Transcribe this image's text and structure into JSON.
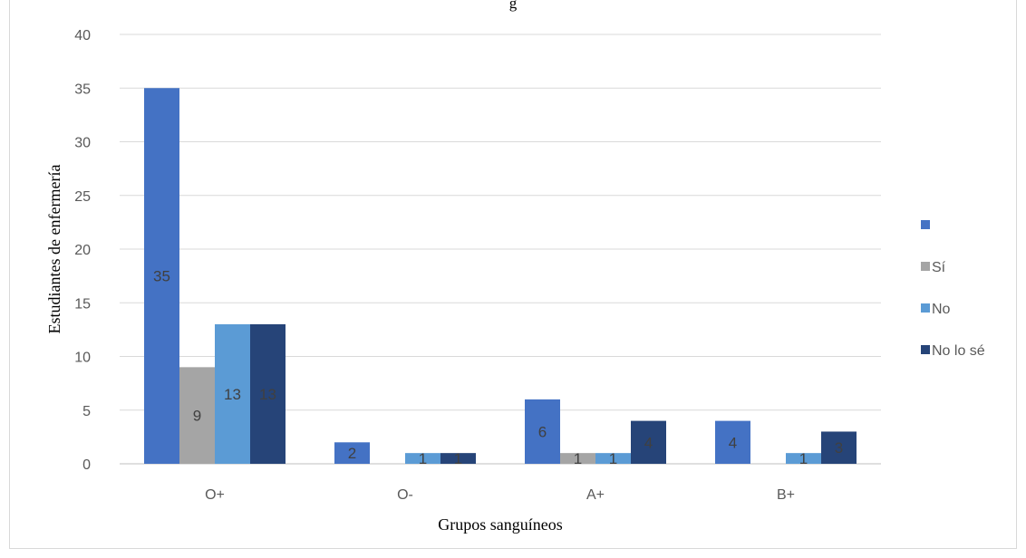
{
  "chart_data": {
    "type": "bar",
    "title": "g",
    "categories": [
      "O+",
      "O-",
      "A+",
      "B+"
    ],
    "series": [
      {
        "name": "",
        "values": [
          35,
          2,
          6,
          4
        ],
        "color": "#4472C4"
      },
      {
        "name": "Sí",
        "values": [
          9,
          0,
          1,
          0
        ],
        "color": "#A5A5A5"
      },
      {
        "name": "No",
        "values": [
          13,
          1,
          1,
          1
        ],
        "color": "#5B9BD5"
      },
      {
        "name": "No lo sé",
        "values": [
          13,
          1,
          4,
          3
        ],
        "color": "#264478"
      }
    ],
    "data_labels": [
      [
        "35",
        "2",
        "6",
        "4"
      ],
      [
        "9",
        "",
        "1",
        ""
      ],
      [
        "13",
        "1",
        "1",
        "1"
      ],
      [
        "13",
        "1",
        "4",
        "3"
      ]
    ],
    "xlabel": "Grupos sanguíneos",
    "ylabel": "Estudiantes de enfermería",
    "ylim": [
      0,
      40
    ],
    "yticks": [
      0,
      5,
      10,
      15,
      20,
      25,
      30,
      35,
      40
    ],
    "grid": true,
    "legend_position": "right"
  }
}
